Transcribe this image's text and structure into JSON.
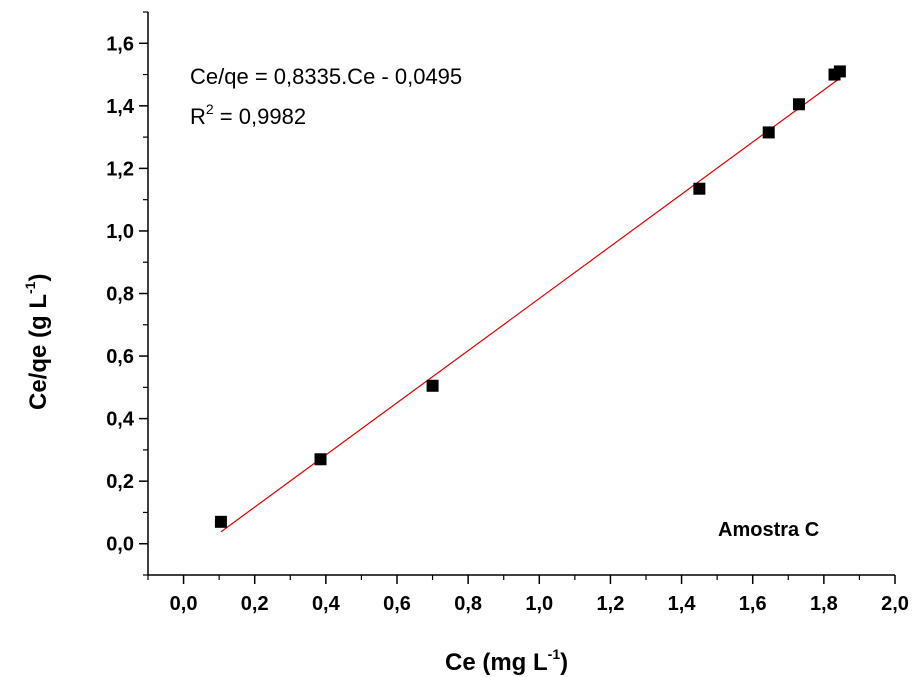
{
  "chart_data": {
    "type": "scatter",
    "xlabel_main": "Ce (mg L",
    "xlabel_sup": "-1",
    "xlabel_end": ")",
    "ylabel_main": "Ce/qe (g L",
    "ylabel_sup": "-1",
    "ylabel_end": ")",
    "xlim": [
      -0.1,
      2.0
    ],
    "ylim": [
      -0.1,
      1.7
    ],
    "xticks": [
      "0,0",
      "0,2",
      "0,4",
      "0,6",
      "0,8",
      "1,0",
      "1,2",
      "1,4",
      "1,6",
      "1,8",
      "2,0"
    ],
    "yticks": [
      "0,0",
      "0,2",
      "0,4",
      "0,6",
      "0,8",
      "1,0",
      "1,2",
      "1,4",
      "1,6"
    ],
    "xtick_values": [
      0.0,
      0.2,
      0.4,
      0.6,
      0.8,
      1.0,
      1.2,
      1.4,
      1.6,
      1.8,
      2.0
    ],
    "ytick_values": [
      0.0,
      0.2,
      0.4,
      0.6,
      0.8,
      1.0,
      1.2,
      1.4,
      1.6
    ],
    "points": {
      "x": [
        0.105,
        0.385,
        0.7,
        1.45,
        1.645,
        1.73,
        1.83,
        1.845
      ],
      "y": [
        0.07,
        0.27,
        0.505,
        1.135,
        1.315,
        1.405,
        1.5,
        1.51
      ]
    },
    "fit": {
      "slope": 0.8335,
      "intercept": -0.0495,
      "x_range": [
        0.105,
        1.845
      ],
      "color": "#e00000"
    },
    "equation": "Ce/qe = 0,8335.Ce - 0,0495",
    "r2_label": "R",
    "r2_sup": "2",
    "r2_value": " = 0,9982",
    "sample_label": "Amostra C",
    "marker_color": "#000000"
  }
}
